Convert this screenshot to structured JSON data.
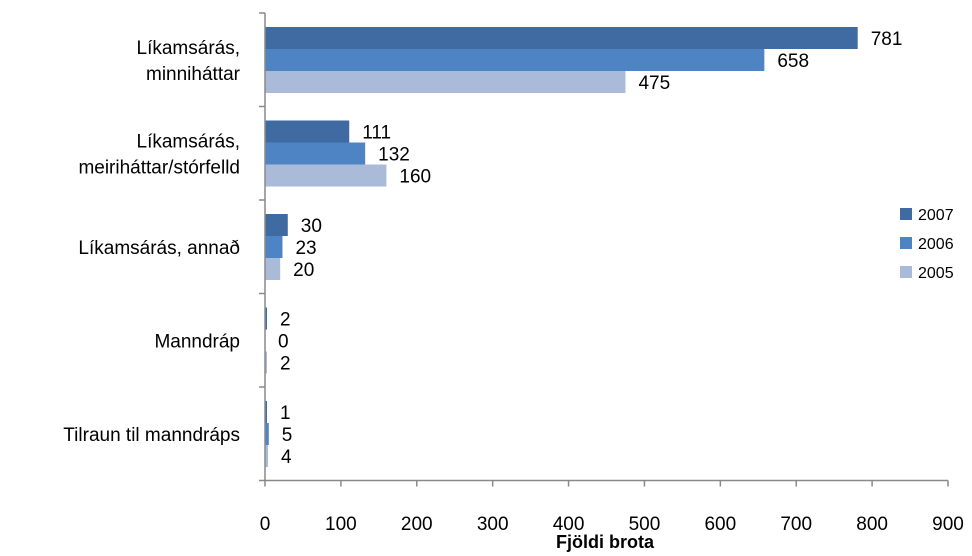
{
  "chart_data": {
    "type": "bar",
    "orientation": "horizontal",
    "categories": [
      [
        "Líkamsárás,",
        "minniháttar"
      ],
      [
        "Líkamsárás,",
        "meiriháttar/stórfelld"
      ],
      [
        "Líkamsárás, annað"
      ],
      [
        "Manndráp"
      ],
      [
        "Tilraun til manndráps"
      ]
    ],
    "series": [
      {
        "name": "2007",
        "color": "#3f6aa2",
        "values": [
          781,
          111,
          30,
          2,
          1
        ]
      },
      {
        "name": "2006",
        "color": "#4f84c4",
        "values": [
          658,
          132,
          23,
          0,
          5
        ]
      },
      {
        "name": "2005",
        "color": "#aabad9",
        "values": [
          475,
          160,
          20,
          2,
          4
        ]
      }
    ],
    "xlabel": "Fjöldi brota",
    "ylabel": "",
    "title": "",
    "xlim": [
      0,
      900
    ],
    "xticks": [
      0,
      100,
      200,
      300,
      400,
      500,
      600,
      700,
      800,
      900
    ],
    "grid": false,
    "legend_position": "right"
  }
}
